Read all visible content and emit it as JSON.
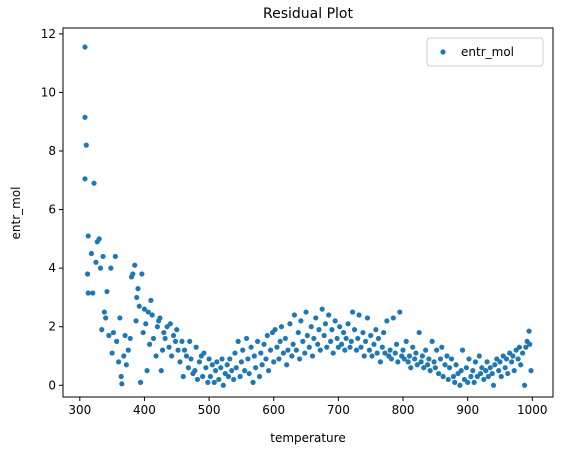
{
  "chart_data": {
    "type": "scatter",
    "title": "Residual Plot",
    "x_label": "temperature",
    "y_label": "entr_mol",
    "xlim": [
      274,
      1032
    ],
    "ylim": [
      -0.4,
      12.2
    ],
    "xticks": [
      300,
      400,
      500,
      600,
      700,
      800,
      900,
      1000
    ],
    "yticks": [
      0,
      2,
      4,
      6,
      8,
      10,
      12
    ],
    "legend": "upper right",
    "series": [
      {
        "name": "entr_mol",
        "color": "#1f77b4",
        "x": [
          308,
          308,
          308,
          310,
          313,
          312,
          313,
          318,
          320,
          322,
          325,
          327,
          330,
          332,
          334,
          336,
          338,
          340,
          342,
          345,
          348,
          350,
          352,
          355,
          357,
          360,
          362,
          364,
          365,
          368,
          370,
          372,
          375,
          378,
          380,
          382,
          385,
          387,
          388,
          390,
          392,
          394,
          396,
          398,
          400,
          402,
          404,
          406,
          408,
          410,
          412,
          414,
          418,
          420,
          422,
          424,
          426,
          428,
          430,
          432,
          435,
          438,
          440,
          442,
          445,
          448,
          450,
          452,
          455,
          458,
          460,
          462,
          465,
          468,
          470,
          472,
          475,
          478,
          480,
          482,
          485,
          488,
          490,
          492,
          495,
          498,
          500,
          502,
          505,
          508,
          510,
          512,
          515,
          518,
          520,
          522,
          525,
          528,
          530,
          532,
          535,
          538,
          540,
          542,
          545,
          548,
          550,
          552,
          555,
          558,
          560,
          562,
          565,
          568,
          570,
          572,
          575,
          578,
          580,
          582,
          585,
          588,
          590,
          592,
          595,
          598,
          600,
          602,
          605,
          608,
          610,
          612,
          615,
          618,
          620,
          622,
          625,
          628,
          630,
          632,
          635,
          638,
          640,
          642,
          645,
          648,
          650,
          652,
          655,
          658,
          660,
          662,
          665,
          668,
          670,
          672,
          675,
          678,
          680,
          682,
          685,
          688,
          690,
          692,
          695,
          698,
          700,
          702,
          705,
          708,
          710,
          712,
          715,
          718,
          720,
          722,
          725,
          728,
          730,
          732,
          735,
          738,
          740,
          742,
          745,
          748,
          750,
          752,
          755,
          758,
          760,
          762,
          765,
          768,
          770,
          772,
          775,
          778,
          780,
          782,
          785,
          788,
          790,
          792,
          795,
          798,
          800,
          802,
          805,
          808,
          810,
          812,
          815,
          818,
          820,
          822,
          825,
          828,
          830,
          832,
          835,
          838,
          840,
          842,
          845,
          848,
          850,
          852,
          855,
          858,
          860,
          862,
          865,
          868,
          870,
          872,
          875,
          878,
          880,
          882,
          885,
          888,
          890,
          892,
          895,
          898,
          900,
          902,
          905,
          908,
          910,
          912,
          915,
          918,
          920,
          922,
          925,
          928,
          930,
          932,
          935,
          938,
          940,
          942,
          945,
          948,
          950,
          952,
          955,
          958,
          960,
          962,
          965,
          968,
          970,
          972,
          975,
          978,
          980,
          982,
          985,
          988,
          990,
          992,
          995,
          996,
          998
        ],
        "values": [
          11.55,
          9.15,
          7.05,
          8.2,
          5.1,
          3.8,
          3.15,
          4.5,
          3.15,
          6.9,
          4.2,
          4.9,
          5.0,
          4.0,
          1.9,
          4.4,
          2.5,
          2.3,
          3.2,
          1.7,
          4.0,
          1.1,
          1.8,
          4.4,
          1.5,
          0.8,
          2.3,
          0.3,
          0.05,
          1.0,
          1.7,
          0.7,
          1.2,
          1.6,
          3.7,
          3.8,
          4.1,
          2.2,
          3.0,
          3.3,
          2.7,
          0.1,
          3.8,
          1.8,
          2.6,
          2.1,
          0.5,
          2.5,
          1.4,
          2.9,
          2.4,
          1.6,
          1.0,
          2.0,
          2.2,
          2.3,
          0.5,
          1.2,
          1.8,
          1.6,
          2.0,
          1.3,
          2.1,
          1.0,
          1.7,
          1.5,
          1.9,
          1.2,
          0.8,
          1.5,
          0.3,
          1.2,
          1.0,
          0.6,
          1.5,
          0.9,
          0.4,
          0.5,
          1.3,
          0.2,
          0.8,
          1.0,
          0.3,
          1.1,
          0.6,
          0.1,
          0.9,
          0.3,
          0.7,
          0.1,
          0.5,
          0.8,
          0.2,
          0.6,
          0.9,
          0.0,
          0.4,
          0.7,
          0.3,
          0.9,
          0.5,
          0.2,
          1.1,
          0.6,
          1.5,
          0.3,
          0.8,
          1.2,
          0.5,
          1.6,
          0.9,
          0.4,
          1.3,
          0.1,
          1.0,
          0.6,
          1.5,
          0.3,
          1.1,
          0.7,
          1.4,
          0.9,
          1.7,
          0.5,
          1.2,
          1.8,
          0.8,
          1.9,
          1.3,
          0.9,
          1.5,
          2.0,
          1.1,
          1.6,
          0.7,
          1.2,
          2.1,
          1.0,
          1.4,
          2.4,
          1.2,
          1.8,
          0.9,
          2.2,
          1.5,
          1.1,
          2.5,
          1.7,
          1.3,
          2.0,
          1.0,
          1.6,
          2.3,
          1.4,
          1.9,
          1.2,
          2.6,
          1.7,
          2.1,
          1.3,
          2.4,
          1.5,
          1.9,
          1.1,
          2.2,
          1.6,
          1.3,
          2.0,
          1.4,
          1.8,
          1.2,
          1.6,
          2.1,
          1.3,
          1.5,
          2.5,
          1.9,
          1.2,
          1.6,
          2.4,
          1.3,
          1.8,
          1.0,
          1.5,
          2.3,
          1.2,
          1.7,
          1.0,
          1.4,
          1.9,
          1.1,
          1.6,
          0.8,
          1.3,
          1.8,
          1.1,
          2.2,
          1.0,
          1.2,
          0.9,
          2.3,
          1.1,
          1.4,
          0.8,
          2.5,
          1.0,
          1.2,
          0.9,
          1.5,
          0.8,
          1.0,
          0.6,
          1.3,
          0.9,
          1.1,
          0.7,
          1.8,
          0.8,
          1.0,
          0.6,
          1.2,
          0.7,
          0.9,
          0.5,
          1.5,
          0.8,
          0.6,
          1.2,
          0.4,
          0.9,
          1.3,
          0.3,
          0.7,
          1.0,
          0.2,
          0.6,
          0.9,
          0.3,
          0.1,
          0.7,
          0.4,
          0.0,
          0.5,
          1.2,
          0.2,
          0.6,
          0.1,
          0.9,
          0.3,
          0.5,
          0.1,
          0.8,
          0.3,
          1.0,
          0.4,
          0.6,
          0.2,
          0.5,
          0.8,
          0.3,
          0.6,
          0.4,
          0.0,
          0.7,
          0.9,
          0.5,
          0.8,
          0.3,
          1.0,
          0.6,
          0.9,
          0.4,
          1.1,
          0.8,
          1.0,
          0.5,
          1.2,
          0.9,
          1.3,
          0.7,
          1.1,
          0.0,
          1.3,
          1.5,
          1.85,
          1.4,
          0.5
        ]
      }
    ]
  }
}
